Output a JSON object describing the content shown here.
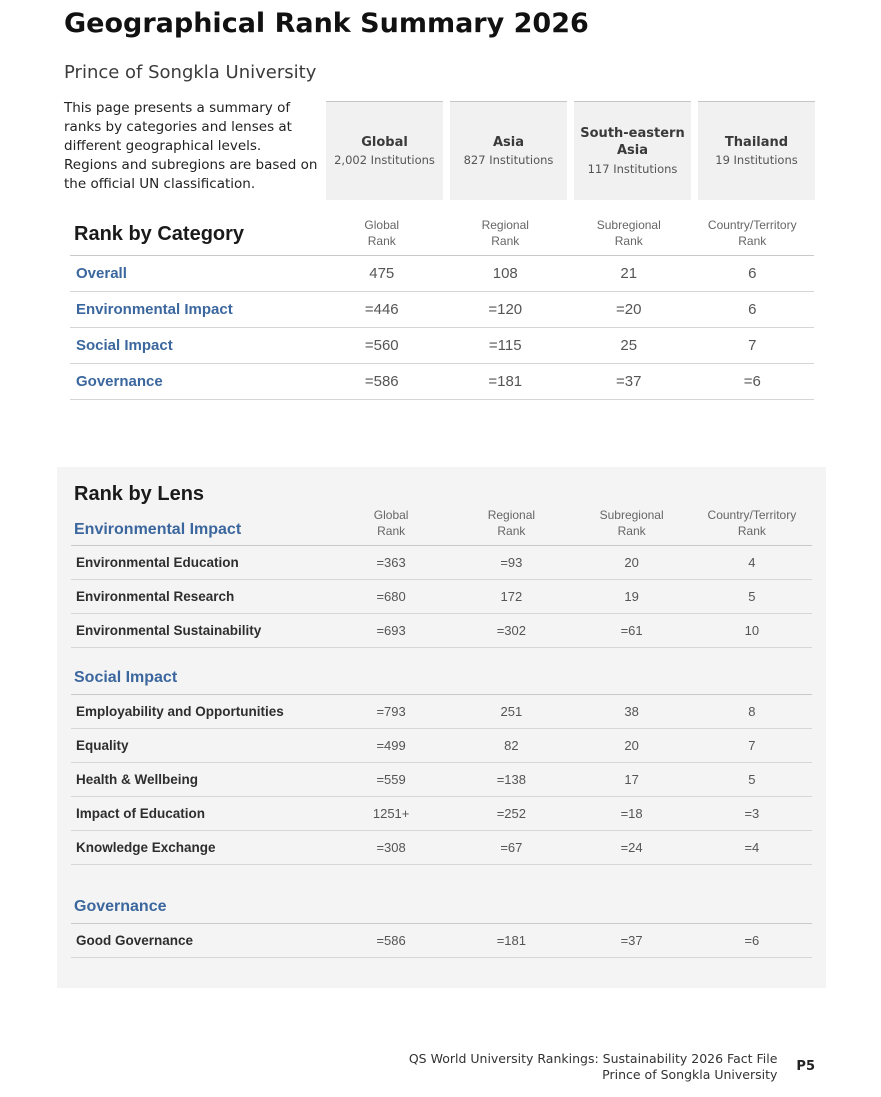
{
  "page": {
    "title": "Geographical Rank Summary 2026",
    "subtitle": "Prince of Songkla University",
    "intro": "This page presents a summary of ranks by categories and lenses at different geographical levels. Regions and subregions are based on the official UN classification."
  },
  "geo_boxes": [
    {
      "name": "Global",
      "institutions": "2,002 Institutions"
    },
    {
      "name": "Asia",
      "institutions": "827 Institutions"
    },
    {
      "name": "South-eastern Asia",
      "institutions": "117 Institutions"
    },
    {
      "name": "Thailand",
      "institutions": "19 Institutions"
    }
  ],
  "rank_by_category": {
    "heading": "Rank by Category",
    "columns": [
      "Global\nRank",
      "Regional\nRank",
      "Subregional\nRank",
      "Country/Territory\nRank"
    ],
    "rows": [
      {
        "label": "Overall",
        "values": [
          "475",
          "108",
          "21",
          "6"
        ]
      },
      {
        "label": "Environmental Impact",
        "values": [
          "=446",
          "=120",
          "=20",
          "6"
        ]
      },
      {
        "label": "Social Impact",
        "values": [
          "=560",
          "=115",
          "25",
          "7"
        ]
      },
      {
        "label": "Governance",
        "values": [
          "=586",
          "=181",
          "=37",
          "=6"
        ]
      }
    ]
  },
  "rank_by_lens": {
    "heading": "Rank by Lens",
    "columns": [
      "Global\nRank",
      "Regional\nRank",
      "Subregional\nRank",
      "Country/Territory\nRank"
    ],
    "sections": [
      {
        "heading": "Environmental Impact",
        "rows": [
          {
            "label": "Environmental Education",
            "values": [
              "=363",
              "=93",
              "20",
              "4"
            ]
          },
          {
            "label": "Environmental Research",
            "values": [
              "=680",
              "172",
              "19",
              "5"
            ]
          },
          {
            "label": "Environmental Sustainability",
            "values": [
              "=693",
              "=302",
              "=61",
              "10"
            ]
          }
        ]
      },
      {
        "heading": "Social Impact",
        "rows": [
          {
            "label": "Employability and Opportunities",
            "values": [
              "=793",
              "251",
              "38",
              "8"
            ]
          },
          {
            "label": "Equality",
            "values": [
              "=499",
              "82",
              "20",
              "7"
            ]
          },
          {
            "label": "Health & Wellbeing",
            "values": [
              "=559",
              "=138",
              "17",
              "5"
            ]
          },
          {
            "label": "Impact of Education",
            "values": [
              "1251+",
              "=252",
              "=18",
              "=3"
            ]
          },
          {
            "label": "Knowledge Exchange",
            "values": [
              "=308",
              "=67",
              "=24",
              "=4"
            ]
          }
        ]
      },
      {
        "heading": "Governance",
        "rows": [
          {
            "label": "Good Governance",
            "values": [
              "=586",
              "=181",
              "=37",
              "=6"
            ]
          }
        ]
      }
    ]
  },
  "footer": {
    "line1": "QS World University Rankings: Sustainability 2026 Fact File",
    "line2": "Prince of Songkla University",
    "page_number": "P5"
  },
  "colors": {
    "accent_blue": "#3b679e",
    "card_background": "#f4f4f4",
    "box_background": "#f1f1f1"
  }
}
